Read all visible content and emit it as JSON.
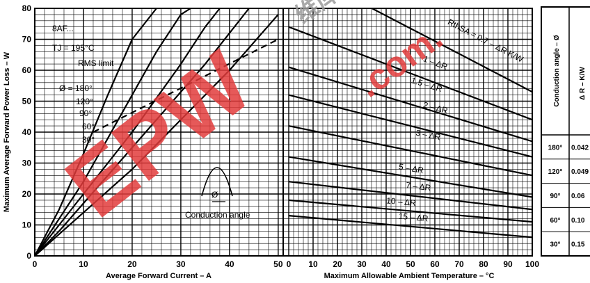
{
  "chart_data": [
    {
      "type": "line",
      "title": "",
      "xlabel": "Average Forward Current – A",
      "ylabel": "Maximum Average Forward Power Loss – W",
      "xlim": [
        0,
        50
      ],
      "ylim": [
        0,
        80
      ],
      "xticks": [
        "0",
        "10",
        "20",
        "30",
        "40",
        "50"
      ],
      "yticks": [
        "0",
        "10",
        "20",
        "30",
        "40",
        "50",
        "60",
        "70",
        "80"
      ],
      "grid": true,
      "annotations": {
        "device": "8AF...",
        "tj": "TJ = 195°C",
        "rms": "RMS limit",
        "phi_label": "Ø = 180°",
        "angles": [
          "120°",
          "90°",
          "60°",
          "30°"
        ],
        "phi_small": "Ø",
        "conduction": "Conduction angle"
      },
      "series": [
        {
          "name": "30°",
          "x": [
            0,
            5,
            10,
            15,
            20,
            25
          ],
          "y": [
            0,
            15,
            33,
            52,
            70,
            80
          ]
        },
        {
          "name": "60°",
          "x": [
            0,
            5,
            10,
            15,
            20,
            25,
            30,
            32
          ],
          "y": [
            0,
            12,
            24,
            38,
            52,
            66,
            78,
            80
          ]
        },
        {
          "name": "90°",
          "x": [
            0,
            5,
            10,
            15,
            20,
            25,
            30,
            35,
            38
          ],
          "y": [
            0,
            10,
            20,
            30,
            40,
            51,
            62,
            74,
            80
          ]
        },
        {
          "name": "120°",
          "x": [
            0,
            5,
            10,
            15,
            20,
            25,
            30,
            35,
            40,
            44
          ],
          "y": [
            0,
            8,
            17,
            26,
            35,
            44,
            53,
            62,
            72,
            80
          ]
        },
        {
          "name": "180°",
          "x": [
            0,
            5,
            10,
            15,
            20,
            25,
            30,
            35,
            40,
            45,
            50
          ],
          "y": [
            0,
            7,
            14,
            21,
            28,
            36,
            44,
            52,
            60,
            69,
            78
          ]
        },
        {
          "name": "RMS limit",
          "x": [
            12,
            50
          ],
          "y": [
            40,
            70
          ]
        }
      ]
    },
    {
      "type": "line",
      "title": "",
      "xlabel": "Maximum Allowable Ambient Temperature – °C",
      "ylabel": "",
      "xlim": [
        0,
        100
      ],
      "ylim": [
        0,
        80
      ],
      "xticks": [
        "0",
        "10",
        "20",
        "30",
        "40",
        "50",
        "60",
        "70",
        "80",
        "90",
        "100"
      ],
      "grid": true,
      "series": [
        {
          "name": "RthSA = 0.7 – ΔR K/W",
          "x": [
            0,
            100
          ],
          "y": [
            94,
            53
          ]
        },
        {
          "name": "1 – ΔR",
          "x": [
            0,
            100
          ],
          "y": [
            74,
            44
          ]
        },
        {
          "name": "1.5 – ΔR",
          "x": [
            0,
            100
          ],
          "y": [
            61,
            37
          ]
        },
        {
          "name": "2 – ΔR",
          "x": [
            0,
            100
          ],
          "y": [
            52,
            32
          ]
        },
        {
          "name": "3 – ΔR",
          "x": [
            0,
            100
          ],
          "y": [
            42,
            26
          ]
        },
        {
          "name": "5 – ΔR",
          "x": [
            0,
            100
          ],
          "y": [
            32,
            19
          ]
        },
        {
          "name": "7 – ΔR",
          "x": [
            0,
            100
          ],
          "y": [
            24,
            15
          ]
        },
        {
          "name": "10 – ΔR",
          "x": [
            0,
            100
          ],
          "y": [
            18,
            11
          ]
        },
        {
          "name": "15 – ΔR",
          "x": [
            0,
            100
          ],
          "y": [
            13,
            6
          ]
        }
      ]
    },
    {
      "type": "table",
      "columns": [
        "Conduction angle – Ø",
        "Δ R – K/W"
      ],
      "rows": [
        [
          "180°",
          "0.042"
        ],
        [
          "120°",
          "0.049"
        ],
        [
          "90°",
          "0.06"
        ],
        [
          "60°",
          "0.10"
        ],
        [
          "30°",
          "0.15"
        ]
      ]
    }
  ],
  "colors": {
    "curve": "#000000",
    "grid": "#000000",
    "watermark_red": "#e23b3b",
    "watermark_gray": "#9a9a9a"
  },
  "watermark": {
    "main": "EPW",
    "domain": ".com.",
    "chinese": "维库电子"
  }
}
